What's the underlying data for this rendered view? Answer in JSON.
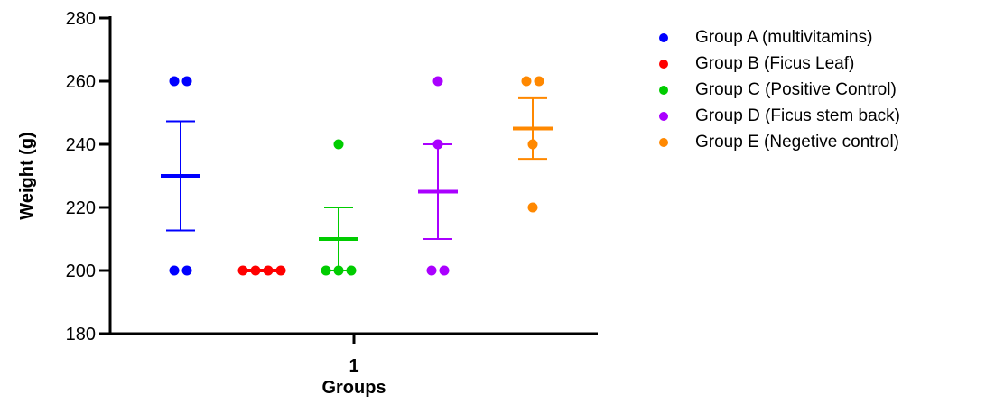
{
  "chart_data": {
    "type": "scatter",
    "categories": [
      "1"
    ],
    "xlabel": "Groups",
    "ylabel": "Weight (g)",
    "ylim": [
      180,
      280
    ],
    "yticks": [
      180,
      200,
      220,
      240,
      260,
      280
    ],
    "grid": false,
    "legend_position": "right",
    "series": [
      {
        "name": "Group A (multivitamins)",
        "color": "#0000ff",
        "values": [
          260,
          260,
          200,
          200
        ],
        "mean": 230,
        "error_upper": 247.3,
        "error_lower": 212.7
      },
      {
        "name": "Group B (Ficus Leaf)",
        "color": "#ff0000",
        "values": [
          200,
          200,
          200,
          200
        ],
        "mean": 200,
        "error_upper": 200,
        "error_lower": 200
      },
      {
        "name": "Group C (Positive Control)",
        "color": "#00cc00",
        "values": [
          240,
          200,
          200,
          200
        ],
        "mean": 210,
        "error_upper": 220,
        "error_lower": 200
      },
      {
        "name": "Group D (Ficus stem back)",
        "color": "#aa00ff",
        "values": [
          260,
          240,
          200,
          200
        ],
        "mean": 225,
        "error_upper": 240,
        "error_lower": 210
      },
      {
        "name": "Group E (Negetive control)",
        "color": "#ff8800",
        "values": [
          260,
          260,
          240,
          220
        ],
        "mean": 245,
        "error_upper": 254.6,
        "error_lower": 235.4
      }
    ]
  }
}
